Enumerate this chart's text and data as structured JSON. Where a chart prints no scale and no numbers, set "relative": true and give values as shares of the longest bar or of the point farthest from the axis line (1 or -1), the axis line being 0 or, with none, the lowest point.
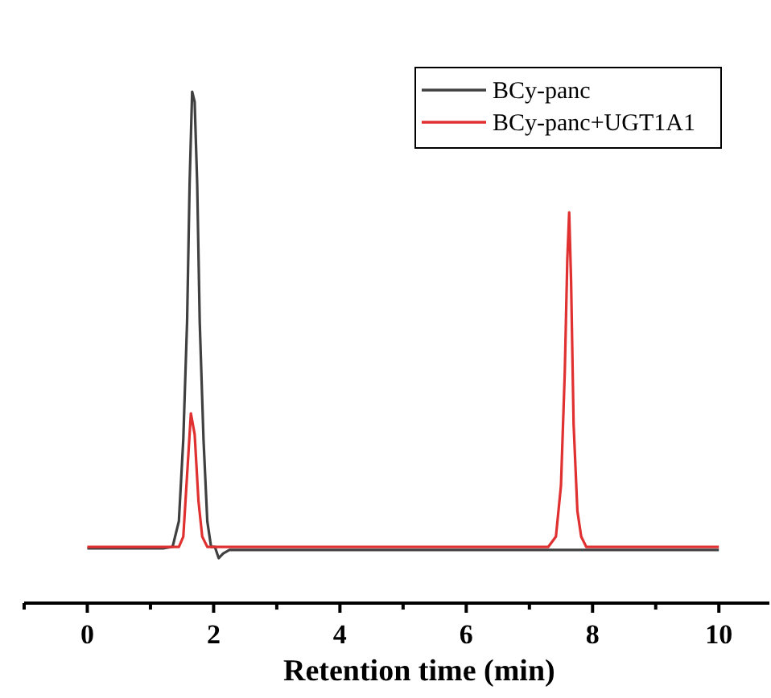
{
  "chart_data": {
    "type": "line",
    "relative": true,
    "xlabel": "Retention time (min)",
    "xlim": [
      -1,
      10.8
    ],
    "xticks": [
      {
        "value": -1,
        "label": null
      },
      0,
      {
        "value": 1,
        "label": null
      },
      2,
      {
        "value": 3,
        "label": null
      },
      4,
      {
        "value": 5,
        "label": null
      },
      6,
      {
        "value": 7,
        "label": null
      },
      8,
      {
        "value": 9,
        "label": null
      },
      10
    ],
    "legend": "top right",
    "grid": false,
    "marker": "none",
    "line_style": "solid",
    "series": [
      {
        "name": "BCy-panc",
        "color": "#404040",
        "x": [
          0,
          1.2,
          1.35,
          1.45,
          1.52,
          1.58,
          1.62,
          1.66,
          1.7,
          1.74,
          1.78,
          1.84,
          1.9,
          1.96,
          2.02,
          2.08,
          2.15,
          2.25,
          10
        ],
        "values": [
          0.107,
          0.107,
          0.11,
          0.16,
          0.32,
          0.55,
          0.82,
          1,
          0.98,
          0.82,
          0.55,
          0.32,
          0.16,
          0.11,
          0.11,
          0.088,
          0.097,
          0.104,
          0.104
        ]
      },
      {
        "name": "BCy-panc+UGT1A1",
        "color": "#e03030",
        "x": [
          0,
          1.45,
          1.52,
          1.58,
          1.64,
          1.7,
          1.76,
          1.82,
          1.9,
          7.3,
          7.42,
          7.5,
          7.56,
          7.6,
          7.63,
          7.66,
          7.7,
          7.76,
          7.82,
          7.9,
          10
        ],
        "values": [
          0.11,
          0.11,
          0.13,
          0.25,
          0.371,
          0.33,
          0.2,
          0.13,
          0.11,
          0.11,
          0.13,
          0.23,
          0.45,
          0.67,
          0.764,
          0.63,
          0.35,
          0.18,
          0.13,
          0.11,
          0.11
        ]
      }
    ]
  }
}
